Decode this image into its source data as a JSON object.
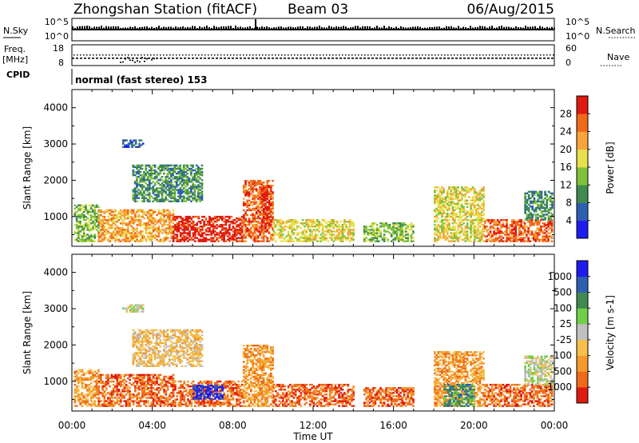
{
  "header": {
    "station": "Zhongshan Station (fitACF)",
    "beam": "Beam 03",
    "date": "06/Aug/2015"
  },
  "strip_panels": {
    "nsky_label": "N.Sky",
    "nsky_ticks": [
      "10^5",
      "10^0"
    ],
    "nsearch_label": "N.Search",
    "nsearch_ticks": [
      "10^5",
      "10^0"
    ],
    "freq_label": "Freq.",
    "freq_unit": "[MHz]",
    "freq_ticks": [
      "18",
      "8"
    ],
    "nave_label": "Nave",
    "nave_ticks": [
      "60",
      "0"
    ],
    "cpid_label": "CPID",
    "cpid_text": "normal (fast stereo) 153"
  },
  "colors": {
    "power": [
      "#1c1cf0",
      "#2e5fb0",
      "#3f8a4e",
      "#7fc23a",
      "#e6e04a",
      "#f7a53a",
      "#f06a1a",
      "#e01a10"
    ],
    "velocity": [
      "#e01a10",
      "#f06a1a",
      "#f39a2a",
      "#f6c04a",
      "#c0c0c0",
      "#6fcf4a",
      "#3f8a4e",
      "#2e5fb0",
      "#1c1cf0"
    ]
  },
  "chart_data": [
    {
      "type": "heatmap",
      "title": "Power",
      "ylabel": "Slant Range [km]",
      "xlabel": "",
      "ylim": [
        180,
        4500
      ],
      "xlim": [
        0,
        24
      ],
      "y_ticks": [
        "4000",
        "3000",
        "2000",
        "1000"
      ],
      "x_ticks": [],
      "colorbar": {
        "label": "Power [dB]",
        "tick_labels": [
          "28",
          "24",
          "20",
          "16",
          "12",
          "8",
          "4"
        ]
      },
      "echo_regions": [
        {
          "t0": 0.1,
          "t1": 1.3,
          "r0": 300,
          "r1": 1300,
          "level": 3
        },
        {
          "t0": 1.3,
          "t1": 5.0,
          "r0": 300,
          "r1": 1200,
          "level": 5
        },
        {
          "t0": 2.5,
          "t1": 3.5,
          "r0": 2900,
          "r1": 3100,
          "level": 1
        },
        {
          "t0": 3.0,
          "t1": 6.5,
          "r0": 1400,
          "r1": 2400,
          "level": 2
        },
        {
          "t0": 5.0,
          "t1": 8.5,
          "r0": 300,
          "r1": 1000,
          "level": 7
        },
        {
          "t0": 8.5,
          "t1": 10.0,
          "r0": 300,
          "r1": 2000,
          "level": 6
        },
        {
          "t0": 9.4,
          "t1": 9.9,
          "r0": 700,
          "r1": 1800,
          "level": 7
        },
        {
          "t0": 10.0,
          "t1": 14.0,
          "r0": 300,
          "r1": 900,
          "level": 4
        },
        {
          "t0": 14.5,
          "t1": 17.0,
          "r0": 300,
          "r1": 800,
          "level": 3
        },
        {
          "t0": 18.0,
          "t1": 20.5,
          "r0": 300,
          "r1": 1800,
          "level": 4
        },
        {
          "t0": 20.5,
          "t1": 23.9,
          "r0": 300,
          "r1": 900,
          "level": 6
        },
        {
          "t0": 22.5,
          "t1": 23.9,
          "r0": 900,
          "r1": 1700,
          "level": 2
        }
      ]
    },
    {
      "type": "heatmap",
      "title": "Velocity",
      "ylabel": "Slant Range [km]",
      "xlabel": "Time UT",
      "ylim": [
        180,
        4500
      ],
      "xlim": [
        0,
        24
      ],
      "y_ticks": [
        "4000",
        "3000",
        "2000",
        "1000"
      ],
      "x_ticks": [
        "00:00",
        "04:00",
        "08:00",
        "12:00",
        "16:00",
        "20:00",
        "00:00"
      ],
      "colorbar": {
        "label": "Velocity [m s-1]",
        "tick_labels": [
          "1000",
          "500",
          "100",
          "25",
          "-25",
          "-100",
          "-500",
          "-1000"
        ]
      },
      "echo_regions": [
        {
          "t0": 0.1,
          "t1": 1.3,
          "r0": 300,
          "r1": 1300,
          "level": 2
        },
        {
          "t0": 1.3,
          "t1": 5.0,
          "r0": 300,
          "r1": 1200,
          "level": 1
        },
        {
          "t0": 2.5,
          "t1": 3.5,
          "r0": 2900,
          "r1": 3100,
          "level": 4
        },
        {
          "t0": 3.0,
          "t1": 6.5,
          "r0": 1400,
          "r1": 2400,
          "level": 3
        },
        {
          "t0": 5.0,
          "t1": 8.5,
          "r0": 300,
          "r1": 1000,
          "level": 1
        },
        {
          "t0": 6.0,
          "t1": 7.5,
          "r0": 500,
          "r1": 900,
          "level": 8
        },
        {
          "t0": 8.5,
          "t1": 10.0,
          "r0": 300,
          "r1": 2000,
          "level": 2
        },
        {
          "t0": 10.0,
          "t1": 14.0,
          "r0": 300,
          "r1": 900,
          "level": 1
        },
        {
          "t0": 14.5,
          "t1": 17.0,
          "r0": 300,
          "r1": 800,
          "level": 1
        },
        {
          "t0": 18.0,
          "t1": 20.5,
          "r0": 300,
          "r1": 1800,
          "level": 2
        },
        {
          "t0": 18.5,
          "t1": 20.0,
          "r0": 300,
          "r1": 900,
          "level": 6
        },
        {
          "t0": 20.5,
          "t1": 23.9,
          "r0": 300,
          "r1": 900,
          "level": 1
        },
        {
          "t0": 22.5,
          "t1": 23.9,
          "r0": 900,
          "r1": 1700,
          "level": 4
        }
      ]
    }
  ]
}
